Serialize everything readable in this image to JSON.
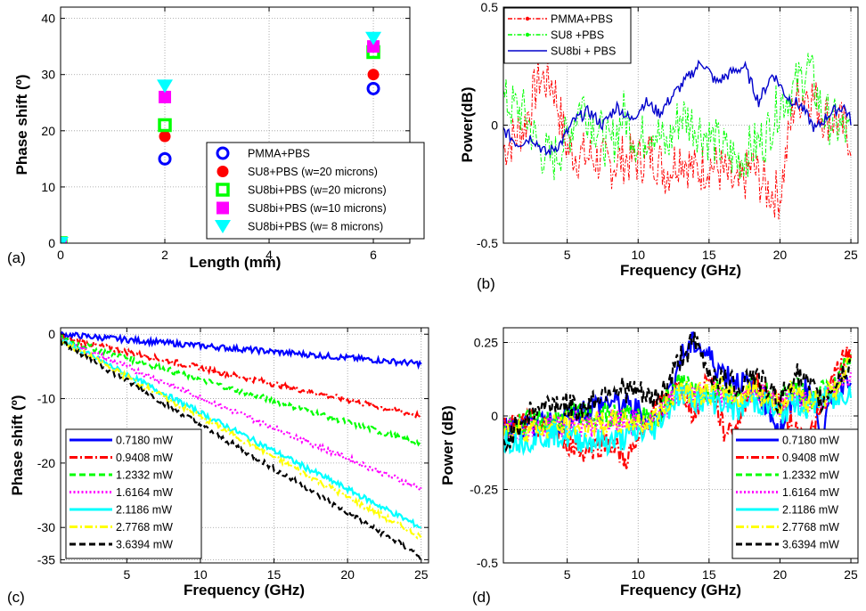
{
  "chart_data": [
    {
      "panel_label": "(a)",
      "type": "scatter",
      "xlabel": "Length (mm)",
      "ylabel": "Phase shift (º)",
      "xlim": [
        0,
        6.7
      ],
      "ylim": [
        0,
        42
      ],
      "x_ticks": [
        "0",
        "2",
        "4",
        "6"
      ],
      "y_ticks": [
        "0",
        "10",
        "20",
        "30",
        "40"
      ],
      "grid": true,
      "legend_position": "bottom-right",
      "series": [
        {
          "name": "PMMA+PBS",
          "marker": "ring",
          "color": "#0000ff",
          "x": [
            0,
            2,
            6
          ],
          "y": [
            0,
            15,
            27.5
          ]
        },
        {
          "name": "SU8+PBS   (w=20 microns)",
          "marker": "circle",
          "color": "#ff0000",
          "x": [
            0,
            2,
            6
          ],
          "y": [
            0,
            19,
            30
          ]
        },
        {
          "name": "SU8bi+PBS (w=20 microns)",
          "marker": "square-ring",
          "color": "#00ff00",
          "x": [
            0,
            2,
            6
          ],
          "y": [
            0,
            21,
            34
          ]
        },
        {
          "name": "SU8bi+PBS (w=10 microns)",
          "marker": "square",
          "color": "#ff00ff",
          "x": [
            0,
            2,
            6
          ],
          "y": [
            0,
            26,
            35
          ]
        },
        {
          "name": "SU8bi+PBS (w=  8 microns)",
          "marker": "triangle-down",
          "color": "#00ffff",
          "x": [
            0,
            2,
            6
          ],
          "y": [
            0,
            28,
            36.5
          ]
        }
      ]
    },
    {
      "panel_label": "(b)",
      "type": "line",
      "xlabel": "Frequency (GHz)",
      "ylabel": "Power(dB)",
      "xlim": [
        0.5,
        25.5
      ],
      "ylim": [
        -0.5,
        0.5
      ],
      "x_ticks": [
        "5",
        "10",
        "15",
        "20",
        "25"
      ],
      "y_ticks": [
        "-0.5",
        "0",
        "0.5"
      ],
      "grid": true,
      "legend_position": "top-left",
      "series": [
        {
          "name": "PMMA+PBS",
          "color": "#ff0000",
          "style": "dash-dot-marker",
          "x": [
            0.5,
            2,
            3,
            4,
            5,
            6,
            7,
            8,
            9,
            10,
            11,
            12,
            13,
            14,
            15,
            16,
            17,
            18,
            19,
            20,
            21,
            22,
            23,
            24,
            25
          ],
          "y": [
            -0.1,
            0.0,
            0.2,
            0.18,
            -0.1,
            -0.13,
            -0.14,
            -0.17,
            -0.14,
            -0.15,
            -0.12,
            -0.2,
            -0.12,
            -0.2,
            -0.16,
            -0.2,
            -0.28,
            -0.17,
            -0.27,
            -0.3,
            0.1,
            0.15,
            0.05,
            0.02,
            -0.05
          ]
        },
        {
          "name": "SU8 +PBS",
          "color": "#00ff00",
          "style": "dash-dot-marker",
          "x": [
            0.5,
            2,
            3,
            4,
            5,
            6,
            7,
            8,
            9,
            10,
            11,
            12,
            13,
            14,
            15,
            16,
            17,
            18,
            19,
            20,
            21,
            22,
            23,
            24,
            25
          ],
          "y": [
            0.1,
            0.05,
            -0.1,
            -0.15,
            -0.05,
            0.1,
            0.0,
            -0.1,
            0.05,
            -0.08,
            0.0,
            -0.1,
            0.05,
            0.0,
            -0.05,
            -0.1,
            -0.15,
            -0.1,
            -0.05,
            0.1,
            0.15,
            0.25,
            0.05,
            0.0,
            -0.05
          ]
        },
        {
          "name": "SU8bi + PBS",
          "color": "#0000cc",
          "style": "solid",
          "x": [
            0.5,
            1.5,
            2.5,
            3.5,
            4.5,
            5.5,
            6.5,
            7.5,
            8.5,
            9.5,
            10.5,
            11.5,
            12.5,
            13.5,
            14.5,
            15.5,
            16.5,
            17.5,
            18.5,
            19.5,
            20.5,
            21.5,
            22.5,
            23.5,
            24.5,
            25
          ],
          "y": [
            -0.02,
            -0.08,
            -0.05,
            -0.12,
            -0.08,
            0.02,
            0.06,
            0.0,
            0.08,
            0.02,
            0.1,
            0.05,
            0.13,
            0.2,
            0.27,
            0.18,
            0.22,
            0.25,
            0.1,
            0.22,
            0.12,
            0.08,
            -0.02,
            0.05,
            0.08,
            0.02
          ]
        }
      ]
    },
    {
      "panel_label": "(c)",
      "type": "line",
      "xlabel": "Frequency (GHz)",
      "ylabel": "Phase shift (º)",
      "xlim": [
        0.5,
        25.5
      ],
      "ylim": [
        -35.5,
        1
      ],
      "x_ticks": [
        "5",
        "10",
        "15",
        "20",
        "25"
      ],
      "y_ticks": [
        "0",
        "-10",
        "-20",
        "-30",
        "-35"
      ],
      "grid": true,
      "legend_position": "bottom-left",
      "series": [
        {
          "name": "0.7180 mW",
          "color": "#0000ff",
          "style": "solid",
          "x": [
            0.5,
            25
          ],
          "y": [
            0,
            -4.6
          ]
        },
        {
          "name": "0.9408 mW",
          "color": "#ff0000",
          "style": "dashdot",
          "x": [
            0.5,
            25
          ],
          "y": [
            -0.5,
            -12.7
          ]
        },
        {
          "name": "1.2332 mW",
          "color": "#00ff00",
          "style": "dashed",
          "x": [
            0.5,
            25
          ],
          "y": [
            -0.7,
            -17
          ]
        },
        {
          "name": "1.6164 mW",
          "color": "#ff00ff",
          "style": "dotted",
          "x": [
            0.5,
            25
          ],
          "y": [
            -0.8,
            -24
          ]
        },
        {
          "name": "2.1186 mW",
          "color": "#00ffff",
          "style": "solid",
          "x": [
            0.5,
            25
          ],
          "y": [
            -0.9,
            -30
          ]
        },
        {
          "name": "2.7768 mW",
          "color": "#ffff00",
          "style": "dashdot",
          "x": [
            0.5,
            25
          ],
          "y": [
            -1.0,
            -31.5
          ]
        },
        {
          "name": "3.6394 mW",
          "color": "#000000",
          "style": "dashed",
          "x": [
            0.5,
            25
          ],
          "y": [
            -1.1,
            -34.5
          ]
        }
      ]
    },
    {
      "panel_label": "(d)",
      "type": "line",
      "xlabel": "Frequency (GHz)",
      "ylabel": "Power (dB)",
      "xlim": [
        0.5,
        25.5
      ],
      "ylim": [
        -0.5,
        0.3
      ],
      "x_ticks": [
        "5",
        "10",
        "15",
        "20",
        "25"
      ],
      "y_ticks": [
        "0.25",
        "0",
        "-0.25",
        "-0.5"
      ],
      "grid": true,
      "legend_position": "bottom-right",
      "series": [
        {
          "name": "0.7180 mW",
          "color": "#0000ff",
          "style": "solid",
          "x": [
            0.5,
            2,
            4,
            6,
            8,
            10,
            11,
            12,
            13,
            14,
            15,
            16,
            17,
            18,
            19,
            20,
            21,
            22,
            23,
            24,
            25
          ],
          "y": [
            -0.05,
            -0.04,
            -0.03,
            0.02,
            0.05,
            0.02,
            -0.03,
            0.05,
            0.2,
            0.25,
            0.2,
            0.15,
            0.12,
            0.1,
            0.05,
            -0.05,
            0.05,
            0.1,
            -0.05,
            0.1,
            0.15
          ]
        },
        {
          "name": "0.9408 mW",
          "color": "#ff0000",
          "style": "dashdot",
          "x": [
            0.5,
            2,
            4,
            6,
            8,
            9,
            10,
            11,
            12,
            13,
            14,
            15,
            16,
            17,
            18,
            19,
            20,
            21,
            22,
            23,
            24,
            25
          ],
          "y": [
            -0.05,
            -0.02,
            -0.05,
            -0.12,
            -0.08,
            -0.15,
            -0.1,
            0.02,
            0.05,
            0.1,
            0.0,
            0.15,
            -0.05,
            -0.03,
            0.12,
            0.08,
            0.05,
            -0.05,
            -0.08,
            0.02,
            0.15,
            0.22
          ]
        },
        {
          "name": "1.2332 mW",
          "color": "#00ff00",
          "style": "dashed",
          "x": [
            0.5,
            3,
            6,
            9,
            11,
            12,
            13,
            14,
            15,
            16,
            17,
            18,
            19,
            20,
            21,
            22,
            23,
            24,
            25
          ],
          "y": [
            -0.04,
            -0.02,
            0.0,
            0.0,
            -0.02,
            0.05,
            0.12,
            0.1,
            0.08,
            0.1,
            0.05,
            0.1,
            0.08,
            0.05,
            0.1,
            0.05,
            0.08,
            0.1,
            0.2
          ]
        },
        {
          "name": "1.6164 mW",
          "color": "#ff00ff",
          "style": "dotted",
          "x": [
            0.5,
            3,
            6,
            9,
            11,
            12,
            13,
            14,
            15,
            16,
            17,
            18,
            19,
            20,
            21,
            22,
            23,
            24,
            25
          ],
          "y": [
            -0.05,
            -0.04,
            -0.03,
            -0.02,
            -0.03,
            0.03,
            0.08,
            0.06,
            0.07,
            0.08,
            0.05,
            0.07,
            0.06,
            0.03,
            0.08,
            0.05,
            0.06,
            0.08,
            0.15
          ]
        },
        {
          "name": "2.1186 mW",
          "color": "#00ffff",
          "style": "solid",
          "x": [
            0.5,
            2,
            4,
            6,
            8,
            10,
            11,
            12,
            13,
            14,
            15,
            16,
            17,
            18,
            19,
            20,
            21,
            22,
            23,
            24,
            25
          ],
          "y": [
            -0.08,
            -0.08,
            -0.06,
            -0.08,
            -0.09,
            -0.06,
            -0.05,
            0.02,
            0.08,
            0.06,
            0.05,
            0.05,
            0.02,
            0.05,
            0.04,
            0.0,
            0.05,
            0.03,
            0.06,
            0.05,
            0.1
          ]
        },
        {
          "name": "2.7768 mW",
          "color": "#ffff00",
          "style": "dashdot",
          "x": [
            0.5,
            3,
            6,
            9,
            11,
            12,
            13,
            14,
            15,
            16,
            17,
            18,
            19,
            20,
            21,
            22,
            23,
            24,
            25
          ],
          "y": [
            -0.05,
            -0.04,
            -0.03,
            -0.02,
            -0.02,
            0.04,
            0.1,
            0.08,
            0.08,
            0.09,
            0.06,
            0.09,
            0.07,
            0.04,
            0.09,
            0.05,
            0.07,
            0.09,
            0.18
          ]
        },
        {
          "name": "3.6394 mW",
          "color": "#000000",
          "style": "dashed",
          "x": [
            0.5,
            2,
            4,
            6,
            8,
            10,
            11,
            12,
            13,
            14,
            15,
            16,
            17,
            18,
            19,
            20,
            21,
            22,
            23,
            24,
            25
          ],
          "y": [
            -0.1,
            0.0,
            0.05,
            0.02,
            0.1,
            0.08,
            0.05,
            0.1,
            0.2,
            0.25,
            0.15,
            0.12,
            0.1,
            0.15,
            0.1,
            0.05,
            0.15,
            0.1,
            0.05,
            0.12,
            0.18
          ]
        }
      ]
    }
  ]
}
